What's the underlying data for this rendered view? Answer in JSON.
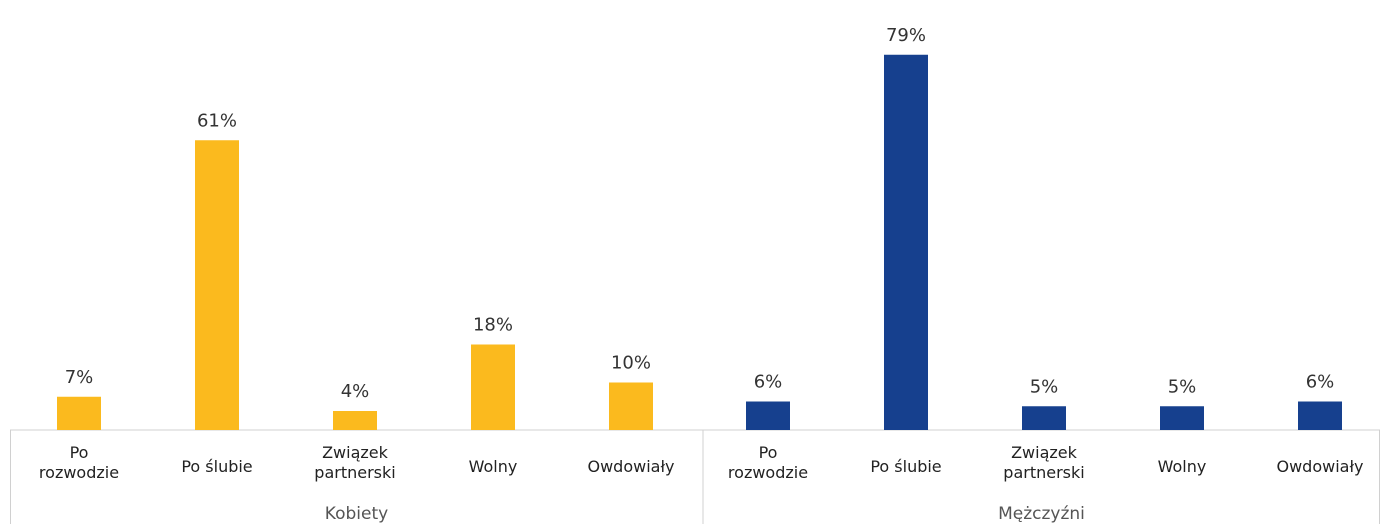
{
  "title_fragment": "",
  "chart_data": {
    "type": "bar",
    "title": "",
    "xlabel": "",
    "ylabel": "",
    "ylim": [
      0,
      80
    ],
    "grid": false,
    "legend": "none",
    "groups": [
      {
        "name": "Kobiety",
        "color": "#FBBA1E",
        "categories": [
          "Po rozwodzie",
          "Po ślubie",
          "Związek partnerski",
          "Wolny",
          "Owdowiały"
        ],
        "category_lines": [
          [
            "Po",
            "rozwodzie"
          ],
          [
            "Po ślubie"
          ],
          [
            "Związek",
            "partnerski"
          ],
          [
            "Wolny"
          ],
          [
            "Owdowiały"
          ]
        ],
        "values": [
          7,
          61,
          4,
          18,
          10
        ],
        "value_labels": [
          "7%",
          "61%",
          "4%",
          "18%",
          "10%"
        ]
      },
      {
        "name": "Mężczyźni",
        "color": "#16408E",
        "categories": [
          "Po rozwodzie",
          "Po ślubie",
          "Związek partnerski",
          "Wolny",
          "Owdowiały"
        ],
        "category_lines": [
          [
            "Po",
            "rozwodzie"
          ],
          [
            "Po ślubie"
          ],
          [
            "Związek",
            "partnerski"
          ],
          [
            "Wolny"
          ],
          [
            "Owdowiały"
          ]
        ],
        "values": [
          6,
          79,
          5,
          5,
          6
        ],
        "value_labels": [
          "6%",
          "79%",
          "5%",
          "5%",
          "6%"
        ]
      }
    ]
  }
}
